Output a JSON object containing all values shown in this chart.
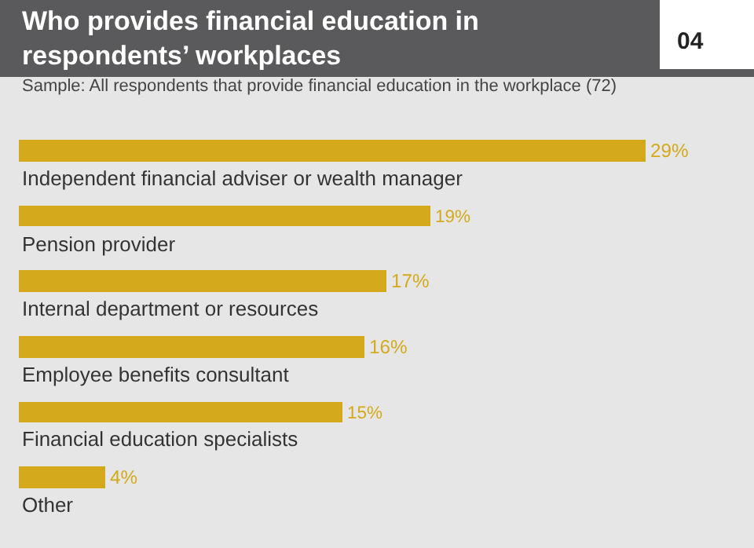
{
  "chart_data": {
    "type": "bar",
    "orientation": "horizontal",
    "title": "Who provides financial education in respondents’ workplaces",
    "subtitle": "Sample: All respondents that provide financial education in the workplace (72)",
    "annotations": [
      "04"
    ],
    "categories": [
      "Independent financial adviser or wealth manager",
      "Pension provider",
      "Internal department or resources",
      "Employee benefits consultant",
      "Financial education specialists",
      "Other"
    ],
    "values": [
      29,
      19,
      17,
      16,
      15,
      4
    ],
    "value_labels": [
      "29%",
      "19%",
      "17%",
      "16%",
      "15%",
      "4%"
    ],
    "color": "#d4aa1c",
    "xlim": [
      0,
      34
    ]
  }
}
